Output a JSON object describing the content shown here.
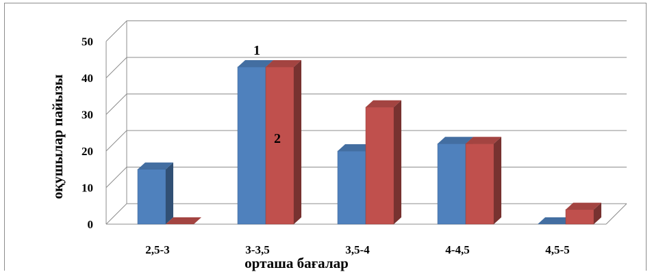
{
  "chart_data": {
    "type": "bar",
    "style": "3d-clustered-column",
    "categories": [
      "2,5-3",
      "3-3,5",
      "3,5-4",
      "4-4,5",
      "4,5-5"
    ],
    "series": [
      {
        "name": "1",
        "color": "#4f81bd",
        "values": [
          15,
          43,
          20,
          22,
          0
        ]
      },
      {
        "name": "2",
        "color": "#c0504d",
        "values": [
          0,
          43,
          32,
          22,
          4
        ]
      }
    ],
    "xlabel": "орташа бағалар",
    "ylabel": "оқушылар пайызы",
    "ylim": [
      0,
      50
    ],
    "yticks": [
      "0",
      "10",
      "20",
      "30",
      "40",
      "50"
    ],
    "grid": true,
    "legend": "none"
  }
}
